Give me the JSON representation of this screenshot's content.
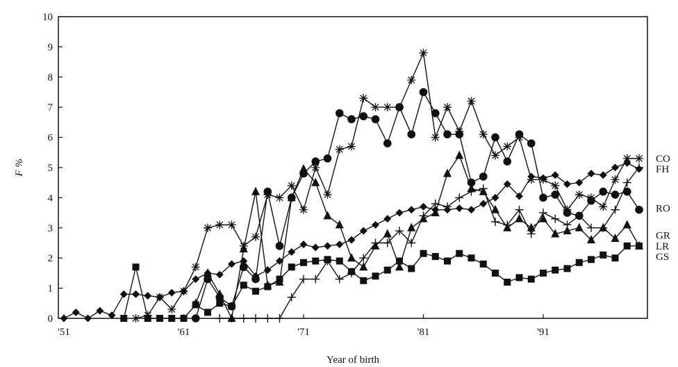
{
  "chart_data": {
    "type": "line",
    "xlabel": "Year of birth",
    "ylabel": "F %",
    "xlim": [
      1951,
      1999
    ],
    "ylim": [
      0,
      10
    ],
    "x_ticks": [
      1951,
      1961,
      1971,
      1981,
      1991
    ],
    "x_tick_labels": [
      "'51",
      "'61",
      "'71",
      "'81",
      "'91"
    ],
    "y_ticks": [
      0,
      1,
      2,
      3,
      4,
      5,
      6,
      7,
      8,
      9,
      10
    ],
    "y_tick_labels": [
      "0",
      "1",
      "2",
      "3",
      "4",
      "5",
      "6",
      "7",
      "8",
      "9",
      "10"
    ],
    "grid": false,
    "legend": "right, labels beside line ends",
    "series": [
      {
        "name": "CO",
        "marker": "star",
        "x": [
          1957,
          1958,
          1959,
          1960,
          1961,
          1962,
          1963,
          1964,
          1965,
          1966,
          1967,
          1968,
          1969,
          1970,
          1971,
          1972,
          1973,
          1974,
          1975,
          1976,
          1977,
          1978,
          1979,
          1980,
          1981,
          1982,
          1983,
          1984,
          1985,
          1986,
          1987,
          1988,
          1989,
          1990,
          1991,
          1992,
          1993,
          1994,
          1995,
          1996,
          1997,
          1998,
          1999
        ],
        "y": [
          0,
          0.1,
          0.7,
          0.3,
          0.9,
          1.7,
          3.0,
          3.1,
          3.1,
          2.4,
          2.7,
          4.1,
          4.0,
          4.4,
          3.6,
          5.0,
          4.1,
          5.6,
          5.7,
          7.3,
          7.0,
          7.0,
          7.0,
          7.9,
          8.8,
          6.0,
          7.0,
          6.2,
          7.2,
          6.1,
          5.4,
          5.7,
          6.0,
          4.6,
          4.6,
          4.4,
          3.6,
          4.1,
          4.0,
          3.7,
          4.6,
          5.3,
          5.3
        ]
      },
      {
        "name": "FH",
        "marker": "diamond",
        "x": [
          1951,
          1952,
          1953,
          1954,
          1955,
          1956,
          1957,
          1958,
          1959,
          1960,
          1961,
          1962,
          1963,
          1964,
          1965,
          1966,
          1967,
          1968,
          1969,
          1970,
          1971,
          1972,
          1973,
          1974,
          1975,
          1976,
          1977,
          1978,
          1979,
          1980,
          1981,
          1982,
          1983,
          1984,
          1985,
          1986,
          1987,
          1988,
          1989,
          1990,
          1991,
          1992,
          1993,
          1994,
          1995,
          1996,
          1997,
          1998,
          1999
        ],
        "y": [
          0,
          0.2,
          0,
          0.25,
          0.1,
          0.8,
          0.8,
          0.75,
          0.7,
          0.85,
          0.9,
          1.3,
          1.5,
          1.45,
          1.8,
          1.9,
          1.4,
          1.6,
          1.9,
          2.2,
          2.45,
          2.35,
          2.4,
          2.45,
          2.6,
          2.9,
          3.1,
          3.3,
          3.5,
          3.6,
          3.7,
          3.6,
          3.6,
          3.65,
          3.6,
          3.8,
          4.0,
          4.45,
          4.05,
          4.7,
          4.65,
          4.75,
          4.45,
          4.5,
          4.8,
          4.75,
          5.0,
          5.15,
          4.95
        ]
      },
      {
        "name": "RO",
        "marker": "circle",
        "x": [
          1962,
          1963,
          1964,
          1965,
          1966,
          1967,
          1968,
          1969,
          1970,
          1971,
          1972,
          1973,
          1974,
          1975,
          1976,
          1977,
          1978,
          1979,
          1980,
          1981,
          1982,
          1983,
          1984,
          1985,
          1986,
          1987,
          1988,
          1989,
          1990,
          1991,
          1992,
          1993,
          1994,
          1995,
          1996,
          1997,
          1998,
          1999
        ],
        "y": [
          0,
          1.3,
          0.7,
          0.4,
          1.7,
          1.3,
          4.2,
          2.4,
          4.0,
          4.8,
          5.2,
          5.3,
          6.8,
          6.6,
          6.7,
          6.6,
          5.8,
          7.0,
          6.1,
          7.5,
          6.8,
          6.1,
          6.1,
          4.5,
          4.7,
          6.0,
          5.2,
          6.1,
          5.8,
          4.0,
          4.1,
          3.5,
          3.4,
          3.9,
          4.2,
          4.1,
          4.2,
          3.6
        ]
      },
      {
        "name": "GR",
        "marker": "triangle",
        "x": [
          1962,
          1963,
          1964,
          1965,
          1966,
          1967,
          1968,
          1969,
          1970,
          1971,
          1972,
          1973,
          1974,
          1975,
          1976,
          1977,
          1978,
          1979,
          1980,
          1981,
          1982,
          1983,
          1984,
          1985,
          1986,
          1987,
          1988,
          1989,
          1990,
          1991,
          1992,
          1993,
          1994,
          1995,
          1996,
          1997,
          1998,
          1999
        ],
        "y": [
          0.5,
          1.5,
          0.8,
          0,
          2.3,
          4.2,
          1.1,
          1.2,
          4.0,
          4.95,
          4.5,
          3.4,
          3.1,
          2.0,
          1.7,
          2.4,
          2.8,
          1.7,
          3.0,
          3.3,
          3.5,
          4.8,
          5.4,
          4.3,
          4.2,
          3.6,
          3.0,
          3.3,
          3.0,
          3.3,
          2.8,
          2.9,
          3.0,
          2.6,
          3.0,
          2.65,
          3.1,
          2.4
        ]
      },
      {
        "name": "LR",
        "marker": "plus",
        "x": [
          1964,
          1965,
          1966,
          1967,
          1968,
          1969,
          1970,
          1971,
          1972,
          1973,
          1974,
          1975,
          1976,
          1977,
          1978,
          1979,
          1980,
          1981,
          1982,
          1983,
          1984,
          1985,
          1986,
          1987,
          1988,
          1989,
          1990,
          1991,
          1992,
          1993,
          1994,
          1995,
          1996,
          1997,
          1998,
          1999
        ],
        "y": [
          0,
          0,
          0,
          0,
          0,
          0,
          0.7,
          1.3,
          1.3,
          1.9,
          1.3,
          1.5,
          2.0,
          2.5,
          2.5,
          2.9,
          2.5,
          3.4,
          3.8,
          3.7,
          4.0,
          4.2,
          4.3,
          3.2,
          3.1,
          3.6,
          2.8,
          3.5,
          3.3,
          3.1,
          3.4,
          3.0,
          3.0,
          3.6,
          4.5,
          5.0
        ]
      },
      {
        "name": "GS",
        "marker": "square",
        "x": [
          1956,
          1957,
          1958,
          1959,
          1960,
          1961,
          1962,
          1963,
          1964,
          1965,
          1966,
          1967,
          1968,
          1969,
          1970,
          1971,
          1972,
          1973,
          1974,
          1975,
          1976,
          1977,
          1978,
          1979,
          1980,
          1981,
          1982,
          1983,
          1984,
          1985,
          1986,
          1987,
          1988,
          1989,
          1990,
          1991,
          1992,
          1993,
          1994,
          1995,
          1996,
          1997,
          1998,
          1999
        ],
        "y": [
          0,
          1.7,
          0,
          0,
          0,
          0,
          0.45,
          0.2,
          0.5,
          0.4,
          1.1,
          0.9,
          1.05,
          1.3,
          1.7,
          1.85,
          1.9,
          1.95,
          1.9,
          1.55,
          1.25,
          1.4,
          1.6,
          1.9,
          1.65,
          2.15,
          2.05,
          1.9,
          2.15,
          2.0,
          1.8,
          1.5,
          1.2,
          1.35,
          1.3,
          1.5,
          1.6,
          1.65,
          1.85,
          1.95,
          2.1,
          2.0,
          2.4,
          2.4
        ]
      }
    ]
  }
}
